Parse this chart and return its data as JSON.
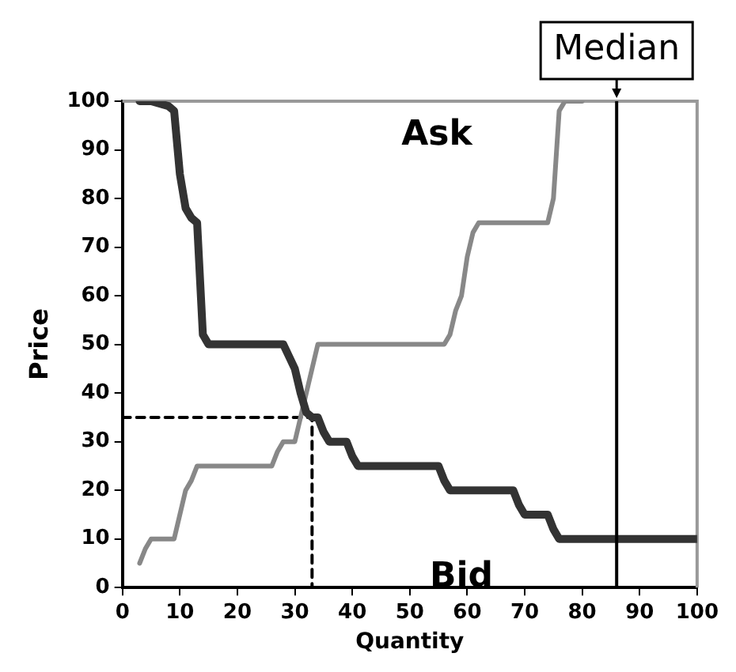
{
  "chart_data": {
    "type": "line",
    "xlabel": "Quantity",
    "ylabel": "Price",
    "xlim": [
      0,
      100
    ],
    "ylim": [
      0,
      100
    ],
    "xticks": [
      0,
      10,
      20,
      30,
      40,
      50,
      60,
      70,
      80,
      90,
      100
    ],
    "yticks": [
      0,
      10,
      20,
      30,
      40,
      50,
      60,
      70,
      80,
      90,
      100
    ],
    "grid": false,
    "legend": false,
    "marker": "none",
    "series": [
      {
        "name": "Bid",
        "color": "#333333",
        "x": [
          3,
          5,
          8,
          9,
          10,
          11,
          12,
          13,
          14,
          15,
          28,
          30,
          31,
          32,
          33,
          34,
          35,
          36,
          39,
          40,
          41,
          55,
          56,
          57,
          68,
          69,
          70,
          74,
          75,
          76,
          100
        ],
        "values": [
          100,
          100,
          99,
          98,
          85,
          78,
          76,
          75,
          52,
          50,
          50,
          45,
          40,
          36,
          35,
          35,
          32,
          30,
          30,
          27,
          25,
          25,
          22,
          20,
          20,
          17,
          15,
          15,
          12,
          10,
          10
        ]
      },
      {
        "name": "Ask",
        "color": "#888888",
        "x": [
          3,
          4,
          5,
          9,
          10,
          11,
          12,
          13,
          26,
          27,
          28,
          30,
          31,
          32,
          33,
          34,
          56,
          57,
          58,
          59,
          60,
          61,
          62,
          74,
          75,
          76,
          77,
          80
        ],
        "values": [
          5,
          8,
          10,
          10,
          15,
          20,
          22,
          25,
          25,
          28,
          30,
          30,
          35,
          40,
          45,
          50,
          50,
          52,
          57,
          60,
          68,
          73,
          75,
          75,
          80,
          98,
          100,
          100
        ]
      },
      {
        "color": "#000000",
        "line_style": "dashed",
        "x": [
          0,
          33,
          33
        ],
        "values": [
          35,
          35,
          0
        ]
      }
    ],
    "ref_lines": [
      {
        "axis": "x",
        "value": 86,
        "label": "Median",
        "color": "#000000"
      }
    ]
  }
}
